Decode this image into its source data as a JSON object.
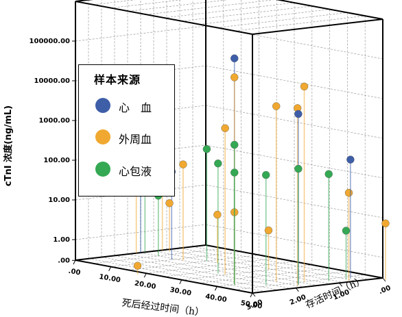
{
  "chart_data": {
    "type": "scatter",
    "variant": "3d-scatter-with-drop-lines",
    "xlabel": "死后经过时间（h）",
    "ylabel": "存活时间（h）",
    "zlabel": "cTnI 浓度(ng/mL)",
    "x_ticks": [
      ".00",
      "10.00",
      "20.00",
      "30.00",
      "40.00",
      "50.00"
    ],
    "y_ticks": [
      "3.00",
      "2.00",
      "1.00",
      ".00"
    ],
    "z_ticks": [
      "100000.00",
      "10000.00",
      "1000.00",
      "100.00",
      "10.00",
      "1.00",
      ".00"
    ],
    "xlim": [
      0,
      50
    ],
    "ylim": [
      0,
      3
    ],
    "z_scale": "log",
    "grid": true,
    "legend": {
      "title": "样本来源",
      "placement": "upper-left, inside plot"
    },
    "series": [
      {
        "name": "心　血",
        "color": "#3e5ea8",
        "points": [
          {
            "x": 0,
            "y": 1.5,
            "z": 300
          },
          {
            "x": 10,
            "y": 1.6,
            "z": 50
          },
          {
            "x": 40,
            "y": 2.6,
            "z": 150000
          },
          {
            "x": 47,
            "y": 1.7,
            "z": 6000
          },
          {
            "x": 47,
            "y": 0.5,
            "z": 300
          }
        ]
      },
      {
        "name": "外周血",
        "color": "#f0a830",
        "points": [
          {
            "x": 0,
            "y": 1.6,
            "z": 350
          },
          {
            "x": 0,
            "y": 1.0,
            "z": 10
          },
          {
            "x": 2,
            "y": 1.0,
            "z": 5
          },
          {
            "x": 12,
            "y": 1.5,
            "z": 80
          },
          {
            "x": 18,
            "y": 1.2,
            "z": 5
          },
          {
            "x": 30,
            "y": 1.0,
            "z": 3
          },
          {
            "x": 30,
            "y": 2.0,
            "z": 1500
          },
          {
            "x": 40,
            "y": 2.6,
            "z": 50000
          },
          {
            "x": 40,
            "y": 2.6,
            "z": 20
          },
          {
            "x": 42,
            "y": 1.8,
            "z": 8000
          },
          {
            "x": 45,
            "y": 1.4,
            "z": 25000
          },
          {
            "x": 48,
            "y": 1.8,
            "z": 9000
          },
          {
            "x": 49,
            "y": 0.7,
            "z": 50
          },
          {
            "x": 52,
            "y": 0.1,
            "z": 8
          },
          {
            "x": 20,
            "y": 3.2,
            "z": 0.5
          }
        ]
      },
      {
        "name": "心包液",
        "color": "#34a853",
        "points": [
          {
            "x": 0,
            "y": 1.4,
            "z": 15
          },
          {
            "x": 5,
            "y": 1.5,
            "z": 10
          },
          {
            "x": 15,
            "y": 1.2,
            "z": 200
          },
          {
            "x": 28,
            "y": 2.0,
            "z": 180
          },
          {
            "x": 40,
            "y": 2.6,
            "z": 200
          },
          {
            "x": 40,
            "y": 2.6,
            "z": 1000
          },
          {
            "x": 44,
            "y": 2.2,
            "z": 180
          },
          {
            "x": 47,
            "y": 1.7,
            "z": 250
          },
          {
            "x": 47,
            "y": 1.0,
            "z": 150
          },
          {
            "x": 47,
            "y": 0.6,
            "z": 5
          }
        ]
      }
    ]
  }
}
